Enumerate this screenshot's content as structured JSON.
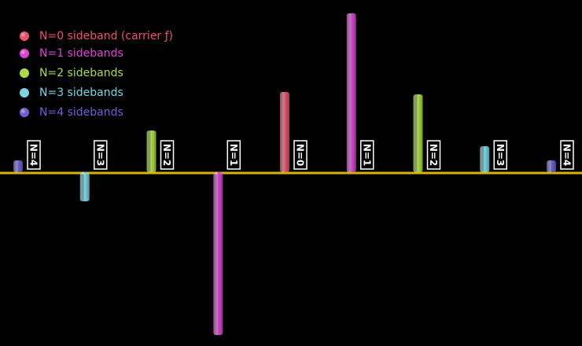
{
  "chart_data": {
    "type": "bar",
    "categories": [
      "N=4",
      "N=3",
      "N=2",
      "N=1",
      "N=0",
      "N=1",
      "N=2",
      "N=3",
      "N=4"
    ],
    "series": [
      {
        "name": "N=0 sideband (carrier ƒ)",
        "color": "#f0506a",
        "values": [
          null,
          null,
          null,
          null,
          102,
          null,
          null,
          null,
          null
        ]
      },
      {
        "name": "N=1 sidebands",
        "color": "#e040d8",
        "values": [
          null,
          null,
          null,
          -207,
          null,
          202,
          null,
          null,
          null
        ]
      },
      {
        "name": "N=2 sidebands",
        "color": "#a8e030",
        "values": [
          null,
          null,
          53,
          null,
          null,
          null,
          99,
          null,
          null
        ]
      },
      {
        "name": "N=3 sidebands",
        "color": "#70d8e8",
        "values": [
          null,
          -37,
          null,
          null,
          null,
          null,
          null,
          33,
          null
        ]
      },
      {
        "name": "N=4 sidebands",
        "color": "#6a60d8",
        "values": [
          15,
          null,
          null,
          null,
          null,
          null,
          null,
          null,
          15
        ]
      }
    ],
    "ylim": [
      -210,
      210
    ],
    "baseline_color": "#d8b400"
  }
}
